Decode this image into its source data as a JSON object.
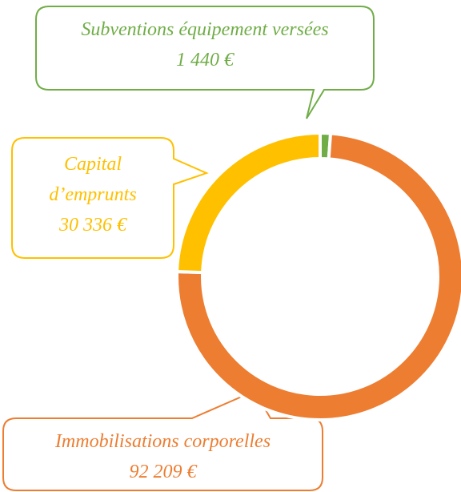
{
  "chart_data": {
    "type": "donut",
    "categories": [
      "Subventions équipement versées",
      "Immobilisations corporelles",
      "Capital d’emprunts"
    ],
    "values": [
      1440,
      92209,
      30336
    ],
    "value_labels": [
      "1 440 €",
      "92 209 €",
      "30 336 €"
    ],
    "colors": [
      "#70ad47",
      "#ed7d31",
      "#ffc000"
    ]
  }
}
